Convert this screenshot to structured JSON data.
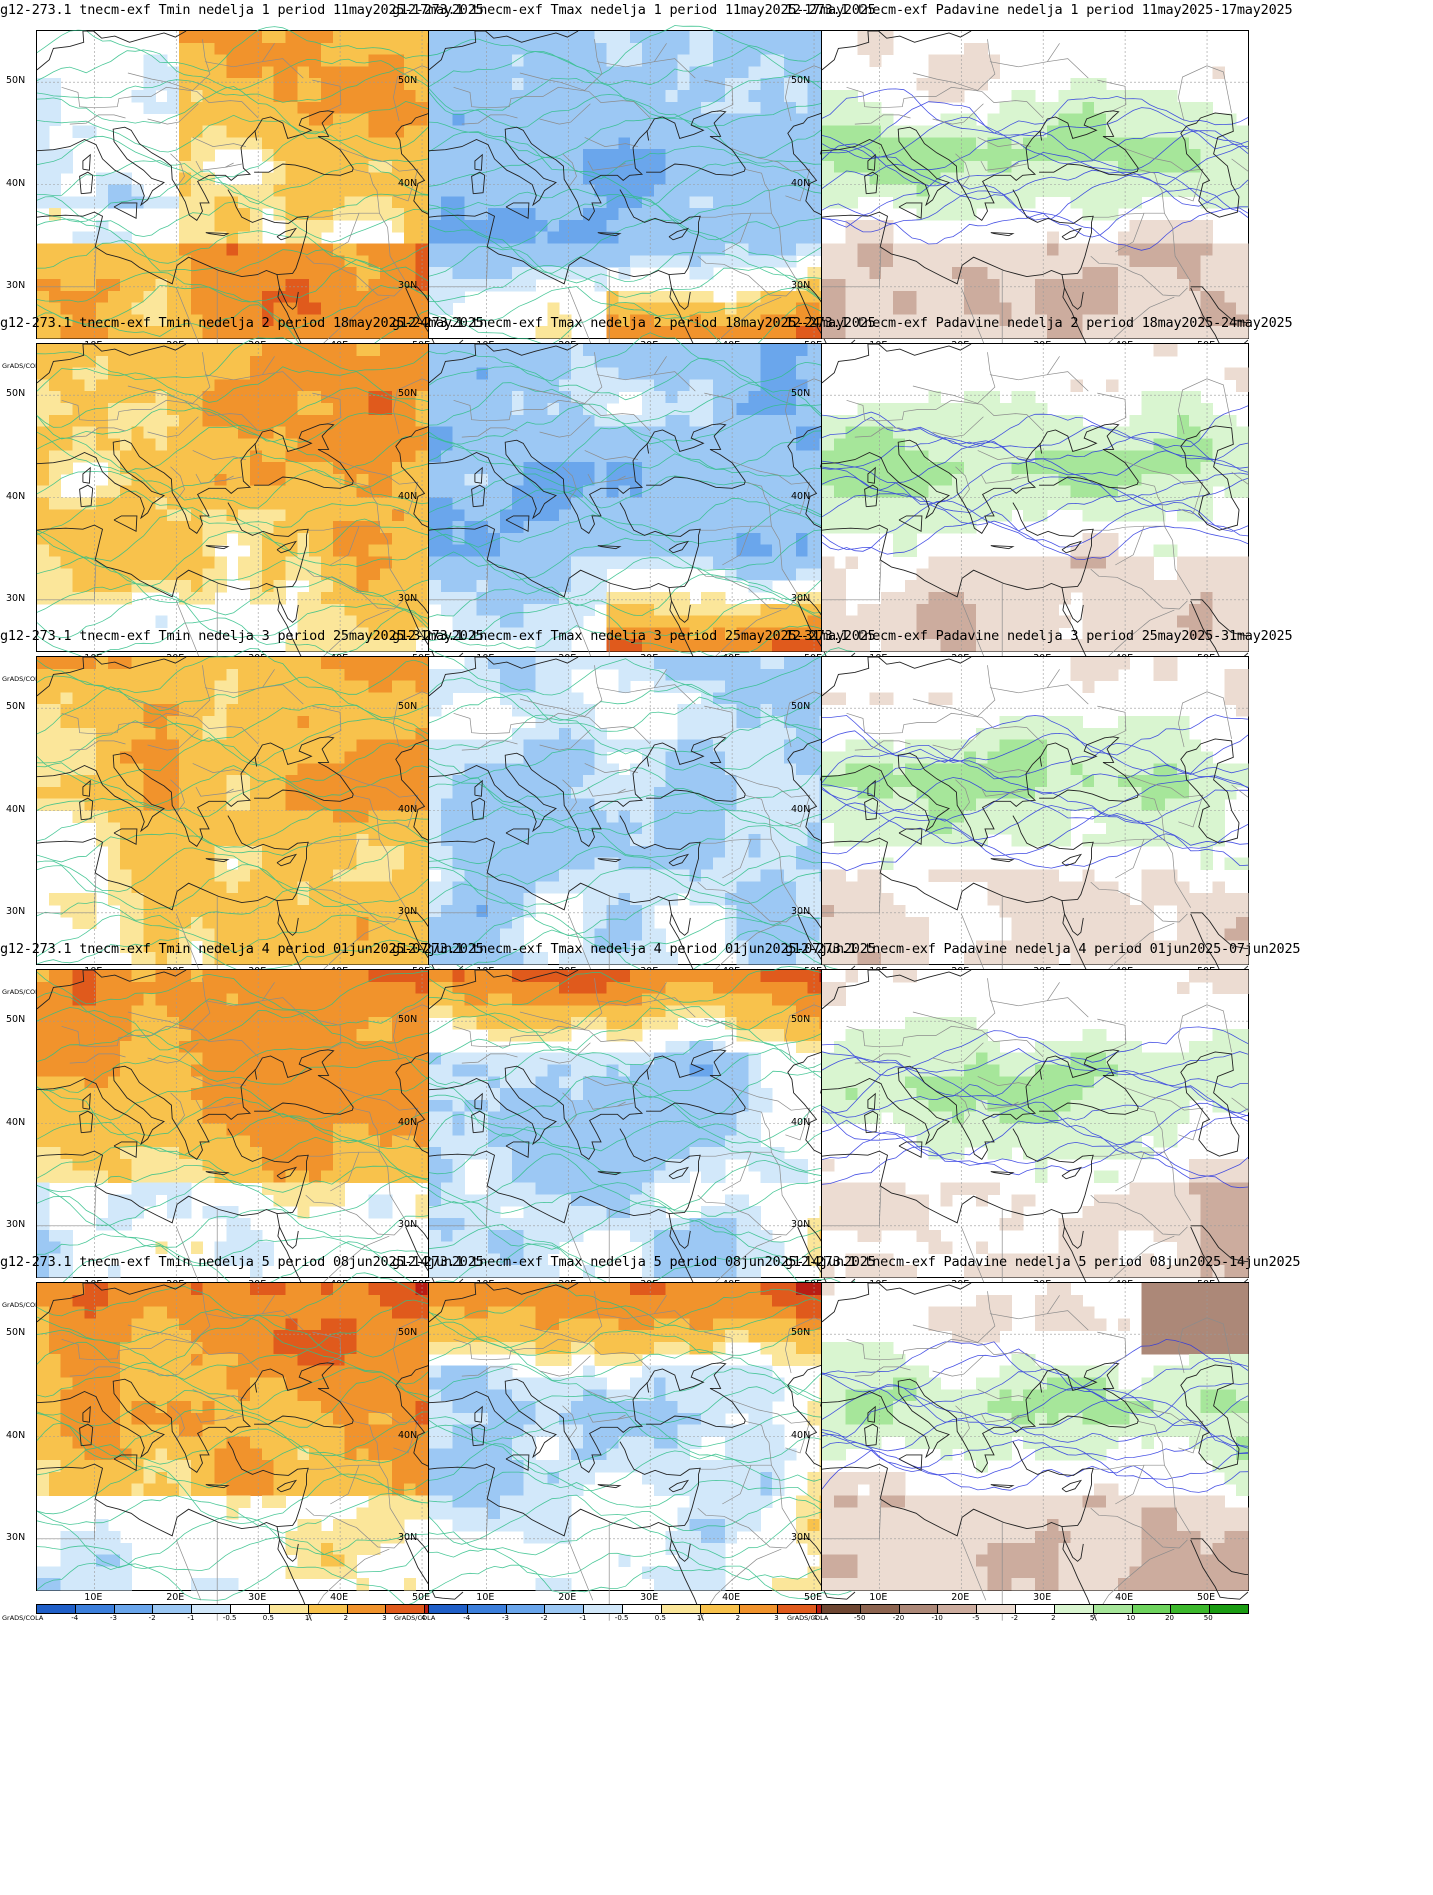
{
  "figure": {
    "rows": [
      {
        "week": 1,
        "panels": [
          {
            "title": "g12-273.1 tnecm-exf Tmin nedelja 1 period 11may2025-17may2025",
            "var": "tmin"
          },
          {
            "title": "g12-273.1 tnecm-exf Tmax nedelja 1 period 11may2025-17may2025",
            "var": "tmax"
          },
          {
            "title": "12-273.1 tnecm-exf Padavine nedelja 1 period 11may2025-17may2025",
            "var": "prec"
          }
        ]
      },
      {
        "week": 2,
        "panels": [
          {
            "title": "g12-273.1 tnecm-exf Tmin nedelja 2 period 18may2025-24may2025",
            "var": "tmin"
          },
          {
            "title": "g12-273.1 tnecm-exf Tmax nedelja 2 period 18may2025-24may2025",
            "var": "tmax"
          },
          {
            "title": "12-273.1 tnecm-exf Padavine nedelja 2 period 18may2025-24may2025",
            "var": "prec"
          }
        ]
      },
      {
        "week": 3,
        "panels": [
          {
            "title": "g12-273.1 tnecm-exf Tmin nedelja 3 period 25may2025-31may2025",
            "var": "tmin"
          },
          {
            "title": "g12-273.1 tnecm-exf Tmax nedelja 3 period 25may2025-31may2025",
            "var": "tmax"
          },
          {
            "title": "12-273.1 tnecm-exf Padavine nedelja 3 period 25may2025-31may2025",
            "var": "prec"
          }
        ]
      },
      {
        "week": 4,
        "panels": [
          {
            "title": "g12-273.1 tnecm-exf Tmin nedelja 4 period 01jun2025-07jun2025",
            "var": "tmin"
          },
          {
            "title": "g12-273.1 tnecm-exf Tmax nedelja 4 period 01jun2025-07jun2025",
            "var": "tmax"
          },
          {
            "title": "g12-273.1 tnecm-exf Padavine nedelja 4 period 01jun2025-07jun2025",
            "var": "prec"
          }
        ]
      },
      {
        "week": 5,
        "panels": [
          {
            "title": "g12-273.1 tnecm-exf Tmin nedelja 5 period 08jun2025-14jun2025",
            "var": "tmin"
          },
          {
            "title": "g12-273.1 tnecm-exf Tmax nedelja 5 period 08jun2025-14jun2025",
            "var": "tmax"
          },
          {
            "title": "g12-273.1 tnecm-exf Padavine nedelja 5 period 08jun2025-14jun2025",
            "var": "prec"
          }
        ]
      }
    ],
    "x_ticks": [
      "10E",
      "20E",
      "30E",
      "40E",
      "50E"
    ],
    "y_ticks": [
      "50N",
      "40N",
      "30N"
    ],
    "credit": "GrADS/COLA",
    "colorbars": {
      "temp": {
        "labels": [
          "-4",
          "-3",
          "-2",
          "-1",
          "-0.5",
          "0.5",
          "1",
          "2",
          "3",
          "4"
        ],
        "colors": [
          "#1f5fc8",
          "#3c7fdc",
          "#6aa6ec",
          "#9cc8f4",
          "#d2e8fa",
          "#ffffff",
          "#fbe69a",
          "#f8c24c",
          "#f1932c",
          "#e05a1c",
          "#b81c14"
        ]
      },
      "prec": {
        "labels": [
          "-50",
          "-20",
          "-10",
          "-5",
          "-2",
          "2",
          "5",
          "10",
          "20",
          "50"
        ],
        "colors": [
          "#6e4632",
          "#8c6450",
          "#ac8878",
          "#ccac9e",
          "#ecdcd2",
          "#ffffff",
          "#d9f5d0",
          "#a6e69a",
          "#6ed45e",
          "#3cb82c",
          "#1a9c12"
        ]
      }
    },
    "contour_colors": {
      "temp": "#2fbf88",
      "prec": "#2a36e0"
    }
  }
}
